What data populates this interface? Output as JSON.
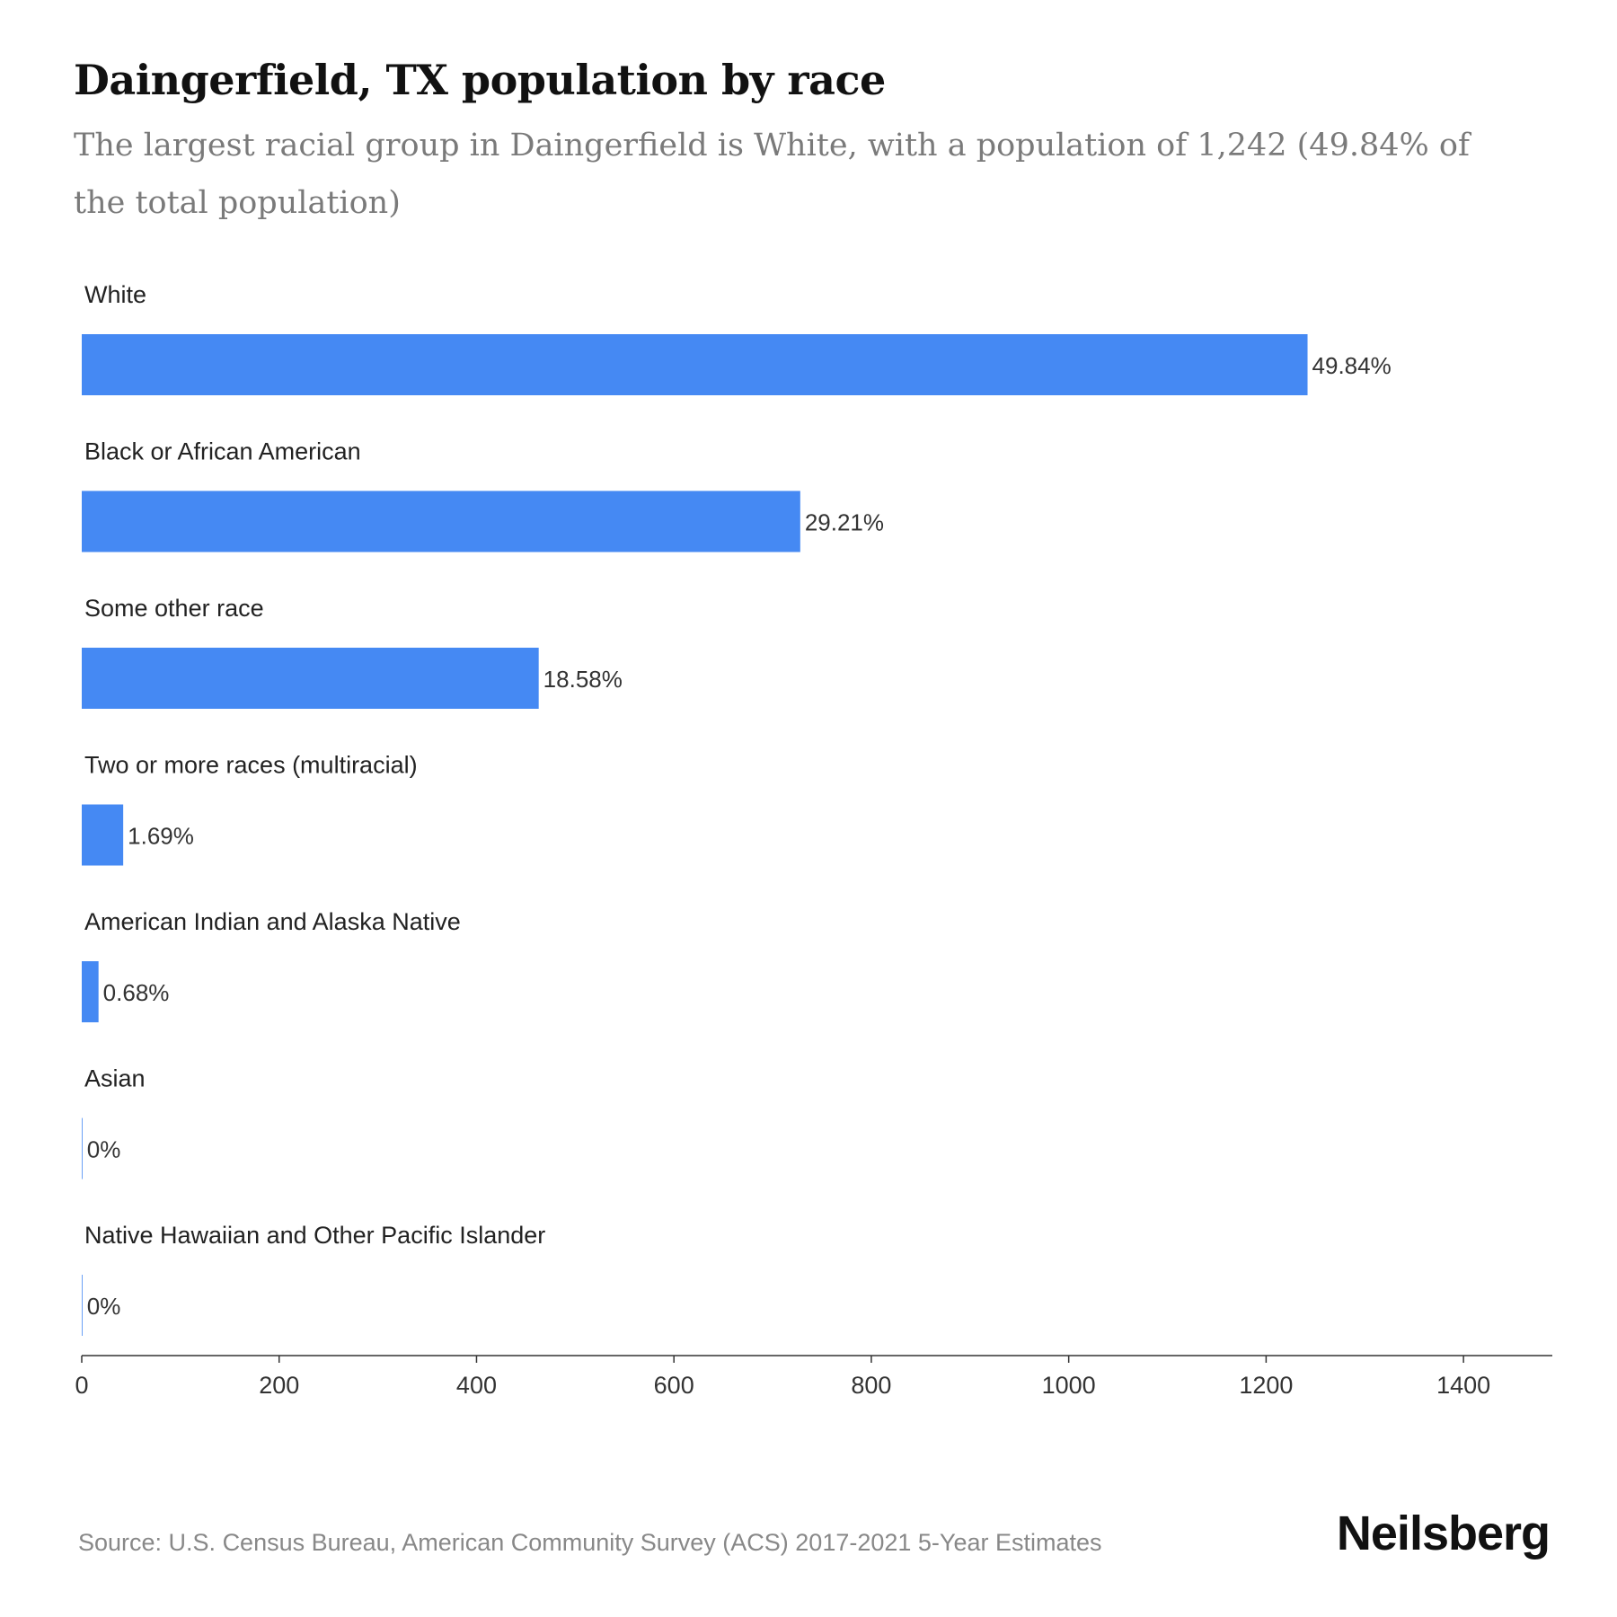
{
  "header": {
    "title": "Daingerfield, TX population by race",
    "subtitle": "The largest racial group in Daingerfield is White, with a population of 1,242 (49.84% of the total population)"
  },
  "chart_data": {
    "type": "bar",
    "orientation": "horizontal",
    "categories": [
      "White",
      "Black or African American",
      "Some other race",
      "Two or more races (multiracial)",
      "American Indian and Alaska Native",
      "Asian",
      "Native Hawaiian and Other Pacific Islander"
    ],
    "values": [
      1242,
      728,
      463,
      42,
      17,
      0,
      0
    ],
    "labels": [
      "49.84%",
      "29.21%",
      "18.58%",
      "1.69%",
      "0.68%",
      "0%",
      "0%"
    ],
    "xlim": [
      0,
      1490
    ],
    "xticks": [
      0,
      200,
      400,
      600,
      800,
      1000,
      1200,
      1400
    ],
    "bar_color": "#4589f3",
    "grid": false,
    "legend": "none"
  },
  "footer": {
    "source": "Source: U.S. Census Bureau, American Community Survey (ACS) 2017-2021 5-Year Estimates",
    "brand": "Neilsberg"
  }
}
